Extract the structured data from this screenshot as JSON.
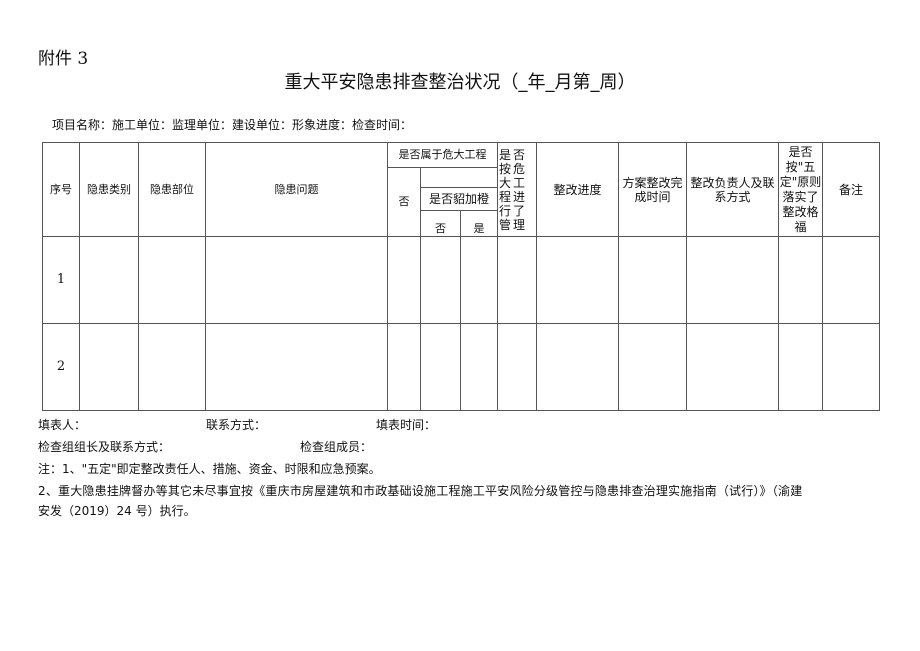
{
  "attachment": "附件 3",
  "title": "重大平安隐患排查整治状况（_年_月第_周）",
  "info_line": "项目名称：施工单位：监理单位：建设单位：形象进度：检查时间：",
  "table": {
    "headers": {
      "seq": "序号",
      "category": "隐患类别",
      "location": "隐患部位",
      "issue": "隐患问题",
      "major": "是否属于危大工程",
      "no": "否",
      "sub": "是否貂加橙",
      "sub_no": "否",
      "sub_yes": "是",
      "managed": "是否按危大工程进行了管理",
      "progress": "整改进度",
      "completion": "方案整改完成时间",
      "responsible": "整改负责人及联系方式",
      "five": "是否按\"五定\"原则落实了整改格福",
      "remarks": "备注"
    },
    "rows": [
      {
        "seq": "1"
      },
      {
        "seq": "2"
      }
    ]
  },
  "footer": {
    "filler": "填表人：",
    "contact": "联系方式：",
    "fill_time": "填表时间：",
    "leader": "检查组组长及联系方式：",
    "members": "检查组成员：",
    "note1": "注：1、\"五定\"即定整改责任人、措施、资金、时限和应急预案。",
    "note2": "2、重大隐患挂牌督办等其它未尽事宜按《重庆市房屋建筑和市政基础设施工程施工平安风险分级管控与隐患排查治理实施指南（试行）》（渝建",
    "note2b": "安发（2019）24 号）执行。"
  }
}
